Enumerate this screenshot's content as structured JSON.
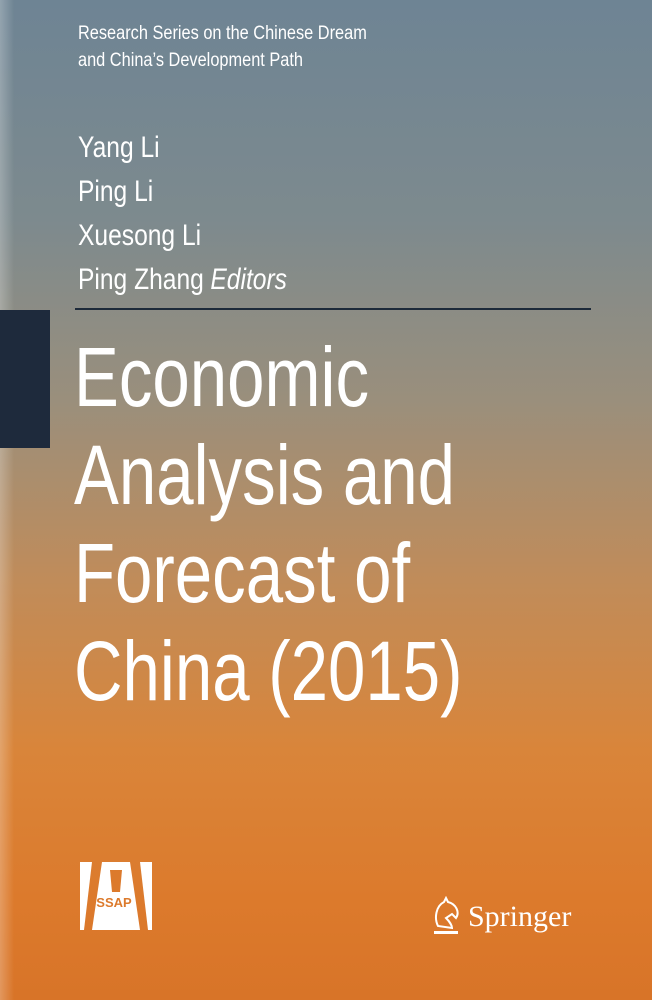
{
  "series": [
    "Research Series on the Chinese Dream",
    "and China’s Development Path"
  ],
  "editors": [
    "Yang Li",
    "Ping Li",
    "Xuesong Li",
    "Ping Zhang"
  ],
  "editors_label": "Editors",
  "title_lines": [
    "Economic",
    "Analysis and",
    "Forecast of",
    "China (2015)"
  ],
  "publisher_logos": {
    "ssap": "SSAP",
    "springer": "Springer"
  },
  "colors": {
    "top": "#6e8494",
    "bottom": "#dc7a2c",
    "block": "#1e2a3c",
    "text": "#ffffff"
  }
}
